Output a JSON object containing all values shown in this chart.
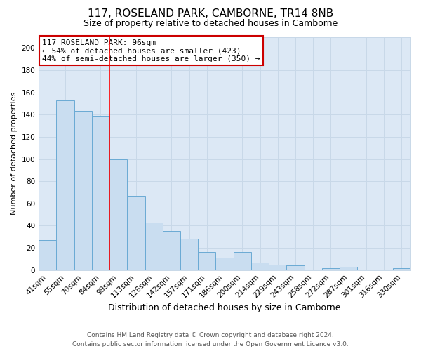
{
  "title": "117, ROSELAND PARK, CAMBORNE, TR14 8NB",
  "subtitle": "Size of property relative to detached houses in Camborne",
  "xlabel": "Distribution of detached houses by size in Camborne",
  "ylabel": "Number of detached properties",
  "categories": [
    "41sqm",
    "55sqm",
    "70sqm",
    "84sqm",
    "99sqm",
    "113sqm",
    "128sqm",
    "142sqm",
    "157sqm",
    "171sqm",
    "186sqm",
    "200sqm",
    "214sqm",
    "229sqm",
    "243sqm",
    "258sqm",
    "272sqm",
    "287sqm",
    "301sqm",
    "316sqm",
    "330sqm"
  ],
  "values": [
    27,
    153,
    143,
    139,
    100,
    67,
    43,
    35,
    28,
    16,
    11,
    16,
    7,
    5,
    4,
    0,
    2,
    3,
    0,
    0,
    2
  ],
  "bar_color": "#c9ddf0",
  "bar_edge_color": "#6aaad4",
  "reference_line_index": 4,
  "annotation_title": "117 ROSELAND PARK: 96sqm",
  "annotation_line1": "← 54% of detached houses are smaller (423)",
  "annotation_line2": "44% of semi-detached houses are larger (350) →",
  "annotation_box_color": "#ffffff",
  "annotation_box_edge_color": "#cc0000",
  "ylim": [
    0,
    210
  ],
  "yticks": [
    0,
    20,
    40,
    60,
    80,
    100,
    120,
    140,
    160,
    180,
    200
  ],
  "grid_color": "#c8d8e8",
  "plot_bg_color": "#dce8f5",
  "figure_bg_color": "#ffffff",
  "footer_line1": "Contains HM Land Registry data © Crown copyright and database right 2024.",
  "footer_line2": "Contains public sector information licensed under the Open Government Licence v3.0.",
  "title_fontsize": 11,
  "subtitle_fontsize": 9,
  "xlabel_fontsize": 9,
  "ylabel_fontsize": 8,
  "tick_fontsize": 7.5,
  "footer_fontsize": 6.5,
  "annotation_fontsize": 8
}
